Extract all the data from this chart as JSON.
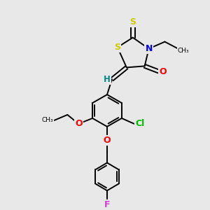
{
  "background_color": "#e8e8e8",
  "atom_colors": {
    "S": "#cccc00",
    "N": "#0000ff",
    "O": "#ff0000",
    "F": "#cc44cc",
    "Cl": "#00bb00",
    "H": "#008888",
    "C": "#000000"
  },
  "figsize": [
    3.0,
    3.0
  ],
  "dpi": 100
}
